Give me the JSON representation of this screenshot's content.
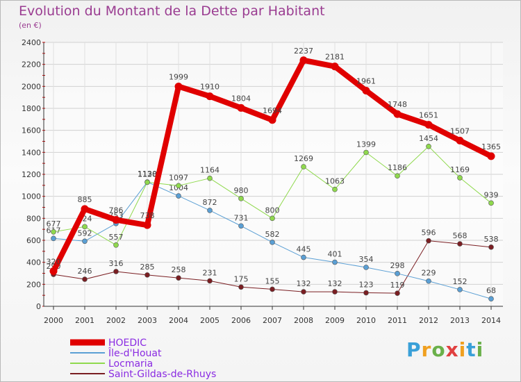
{
  "header": {
    "title": "Evolution du Montant de la Dette par Habitant",
    "subtitle": "(en €)"
  },
  "brand": {
    "letters": [
      "P",
      "r",
      "o",
      "x",
      "i",
      "t",
      "i"
    ],
    "colors": [
      "#3aa0d8",
      "#f0a020",
      "#6ab04a",
      "#e04040",
      "#f0a020",
      "#3aa0d8",
      "#6ab04a"
    ]
  },
  "chart_data": {
    "type": "line",
    "categories": [
      "2000",
      "2001",
      "2002",
      "2003",
      "2004",
      "2005",
      "2006",
      "2007",
      "2008",
      "2009",
      "2010",
      "2011",
      "2012",
      "2013",
      "2014"
    ],
    "ylim": [
      0,
      2400
    ],
    "yticks": [
      0,
      200,
      400,
      600,
      800,
      1000,
      1200,
      1400,
      1600,
      1800,
      2000,
      2200,
      2400
    ],
    "grid": true,
    "legend_position": "bottom-left",
    "series": [
      {
        "name": "HOEDIC",
        "color": "#e00000",
        "width": 8,
        "values": [
          320,
          885,
          786,
          738,
          1999,
          1910,
          1804,
          1694,
          2237,
          2181,
          1961,
          1748,
          1651,
          1507,
          1365
        ]
      },
      {
        "name": "Île-d'Houat",
        "color": "#5a9fd4",
        "width": 1,
        "values": [
          617,
          592,
          753,
          1130,
          1004,
          872,
          731,
          582,
          445,
          401,
          354,
          298,
          229,
          152,
          68
        ]
      },
      {
        "name": "Locmaria",
        "color": "#8fd94d",
        "width": 1,
        "values": [
          677,
          724,
          557,
          1128,
          1097,
          1164,
          980,
          800,
          1269,
          1063,
          1399,
          1186,
          1454,
          1169,
          939
        ]
      },
      {
        "name": "Saint-Gildas-de-Rhuys",
        "color": "#7a1e22",
        "width": 1,
        "values": [
          290,
          246,
          316,
          285,
          258,
          231,
          175,
          155,
          132,
          132,
          123,
          119,
          596,
          568,
          538
        ]
      }
    ]
  }
}
